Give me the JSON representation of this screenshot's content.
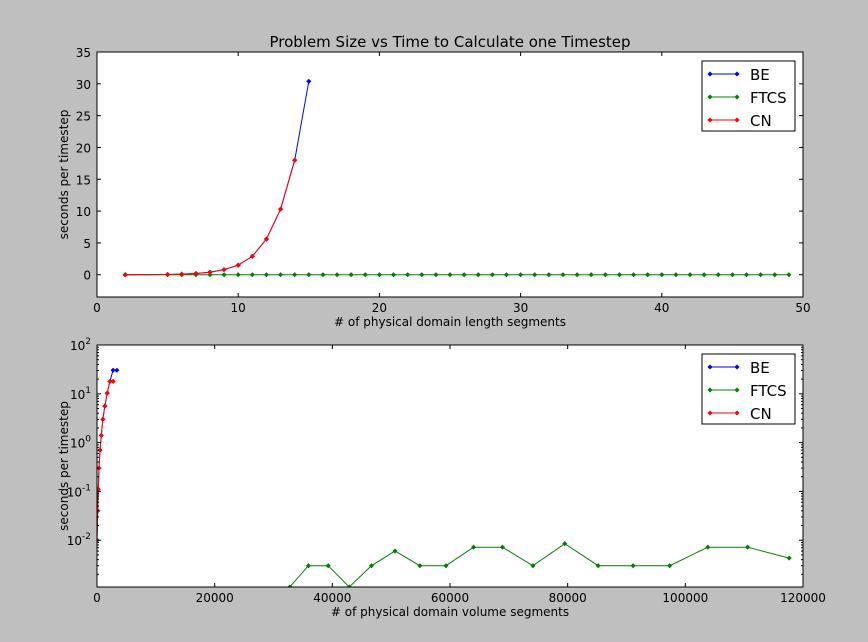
{
  "chart_data": [
    {
      "type": "line",
      "title": "Problem Size vs Time to Calculate one Timestep",
      "xlabel": "# of physical domain length segments",
      "ylabel": "seconds per timestep",
      "xlim": [
        0,
        50
      ],
      "ylim": [
        -3.5,
        35
      ],
      "yscale": "linear",
      "xticks": [
        0,
        10,
        20,
        30,
        40,
        50
      ],
      "yticks": [
        0,
        5,
        10,
        15,
        20,
        25,
        30,
        35
      ],
      "grid": false,
      "legend": "top-right",
      "series": [
        {
          "name": "BE",
          "color": "#0000ff",
          "x": [
            2,
            5,
            6,
            7,
            8,
            9,
            10,
            11,
            12,
            13,
            14,
            15
          ],
          "y": [
            0.0,
            0.04,
            0.1,
            0.2,
            0.4,
            0.8,
            1.5,
            2.9,
            5.6,
            10.3,
            18.0,
            30.4
          ]
        },
        {
          "name": "FTCS",
          "color": "#008000",
          "x": [
            2,
            5,
            6,
            7,
            8,
            9,
            10,
            11,
            12,
            13,
            14,
            15,
            16,
            17,
            18,
            19,
            20,
            21,
            22,
            23,
            24,
            25,
            26,
            27,
            28,
            29,
            30,
            31,
            32,
            33,
            34,
            35,
            36,
            37,
            38,
            39,
            40,
            41,
            42,
            43,
            44,
            45,
            46,
            47,
            48,
            49
          ],
          "y": [
            0,
            0,
            0,
            0,
            0,
            0,
            0,
            0,
            0,
            0,
            0,
            0,
            0,
            0,
            0,
            0,
            0,
            0,
            0,
            0,
            0,
            0,
            0,
            0,
            0,
            0,
            0,
            0,
            0,
            0,
            0,
            0,
            0,
            0,
            0,
            0,
            0,
            0,
            0,
            0,
            0,
            0,
            0,
            0,
            0,
            0
          ]
        },
        {
          "name": "CN",
          "color": "#ff0000",
          "x": [
            2,
            5,
            6,
            7,
            8,
            9,
            10,
            11,
            12,
            13,
            14
          ],
          "y": [
            0.0,
            0.04,
            0.1,
            0.2,
            0.4,
            0.8,
            1.5,
            2.9,
            5.6,
            10.3,
            18.0
          ]
        }
      ]
    },
    {
      "type": "line",
      "title": "",
      "xlabel": "# of physical domain volume segments",
      "ylabel": "seconds per timestep",
      "xlim": [
        0,
        120000
      ],
      "ylim": [
        0.0011,
        100
      ],
      "yscale": "log",
      "xticks": [
        0,
        20000,
        40000,
        60000,
        80000,
        100000,
        120000
      ],
      "yticks": [
        0.01,
        0.1,
        1,
        10,
        100
      ],
      "ytick_labels": [
        {
          "base": "10",
          "exp": "-2"
        },
        {
          "base": "10",
          "exp": "-1"
        },
        {
          "base": "10",
          "exp": "0"
        },
        {
          "base": "10",
          "exp": "1"
        },
        {
          "base": "10",
          "exp": "2"
        }
      ],
      "grid": false,
      "legend": "top-right",
      "series": [
        {
          "name": "BE",
          "color": "#0000ff",
          "x": [
            8,
            125,
            216,
            343,
            512,
            729,
            1000,
            1331,
            1728,
            2197,
            2744,
            3375
          ],
          "y": [
            0.01,
            0.04,
            0.11,
            0.3,
            0.7,
            1.4,
            3.0,
            5.6,
            10.3,
            18.0,
            30.4,
            30.4
          ]
        },
        {
          "name": "FTCS",
          "color": "#008000",
          "x": [
            32768,
            35937,
            39304,
            42875,
            46656,
            50653,
            54872,
            59319,
            64000,
            68921,
            74088,
            79507,
            85184,
            91125,
            97336,
            103823,
            110592,
            117649
          ],
          "y": [
            0.0011,
            0.003,
            0.003,
            0.0011,
            0.003,
            0.006,
            0.003,
            0.003,
            0.0072,
            0.0072,
            0.003,
            0.0085,
            0.003,
            0.003,
            0.003,
            0.0072,
            0.0072,
            0.0043
          ]
        },
        {
          "name": "CN",
          "color": "#ff0000",
          "x": [
            8,
            125,
            216,
            343,
            512,
            729,
            1000,
            1331,
            1728,
            2197,
            2744
          ],
          "y": [
            0.01,
            0.04,
            0.11,
            0.3,
            0.7,
            1.4,
            3.0,
            5.6,
            10.3,
            18.0,
            18.0
          ]
        }
      ]
    }
  ]
}
